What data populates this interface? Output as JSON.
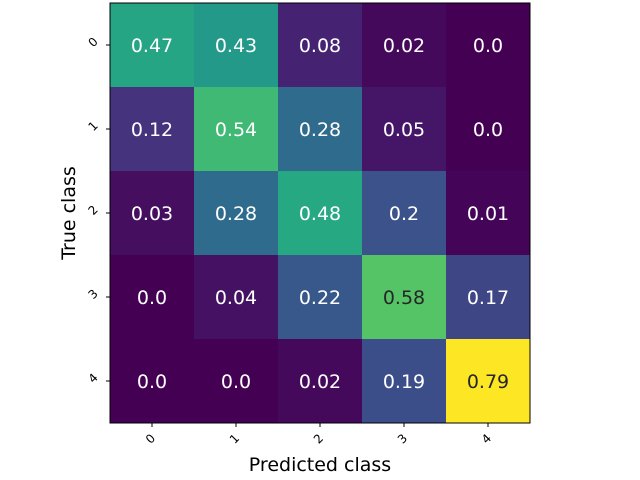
{
  "chart_data": {
    "type": "heatmap",
    "title": "",
    "xlabel": "Predicted class",
    "ylabel": "True class",
    "x_categories": [
      "0",
      "1",
      "2",
      "3",
      "4"
    ],
    "y_categories": [
      "0",
      "1",
      "2",
      "3",
      "4"
    ],
    "values": [
      [
        0.47,
        0.43,
        0.08,
        0.02,
        0.0
      ],
      [
        0.12,
        0.54,
        0.28,
        0.05,
        0.0
      ],
      [
        0.03,
        0.28,
        0.48,
        0.2,
        0.01
      ],
      [
        0.0,
        0.04,
        0.22,
        0.58,
        0.17
      ],
      [
        0.0,
        0.0,
        0.02,
        0.19,
        0.79
      ]
    ],
    "value_labels": [
      [
        "0.47",
        "0.43",
        "0.08",
        "0.02",
        "0.0"
      ],
      [
        "0.12",
        "0.54",
        "0.28",
        "0.05",
        "0.0"
      ],
      [
        "0.03",
        "0.28",
        "0.48",
        "0.2",
        "0.01"
      ],
      [
        "0.0",
        "0.04",
        "0.22",
        "0.58",
        "0.17"
      ],
      [
        "0.0",
        "0.0",
        "0.02",
        "0.19",
        "0.79"
      ]
    ],
    "colormap": "viridis",
    "grid": false,
    "legend": "none"
  }
}
